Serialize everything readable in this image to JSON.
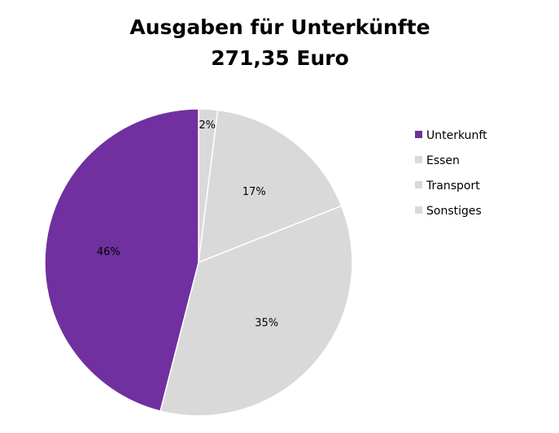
{
  "chart_data": {
    "type": "pie",
    "title": "Ausgaben für Unterkünfte",
    "subtitle": "271,35 Euro",
    "slices": [
      {
        "label": "Sonstiges",
        "value": 2,
        "display": "2%",
        "color": "#d9d9d9"
      },
      {
        "label": "Transport",
        "value": 17,
        "display": "17%",
        "color": "#d9d9d9"
      },
      {
        "label": "Essen",
        "value": 35,
        "display": "35%",
        "color": "#d9d9d9"
      },
      {
        "label": "Unterkunft",
        "value": 46,
        "display": "46%",
        "color": "#7030a0"
      }
    ],
    "start_angle": "12 o'clock",
    "direction": "clockwise",
    "legend_position": "right",
    "slice_border_color": "#ffffff"
  }
}
